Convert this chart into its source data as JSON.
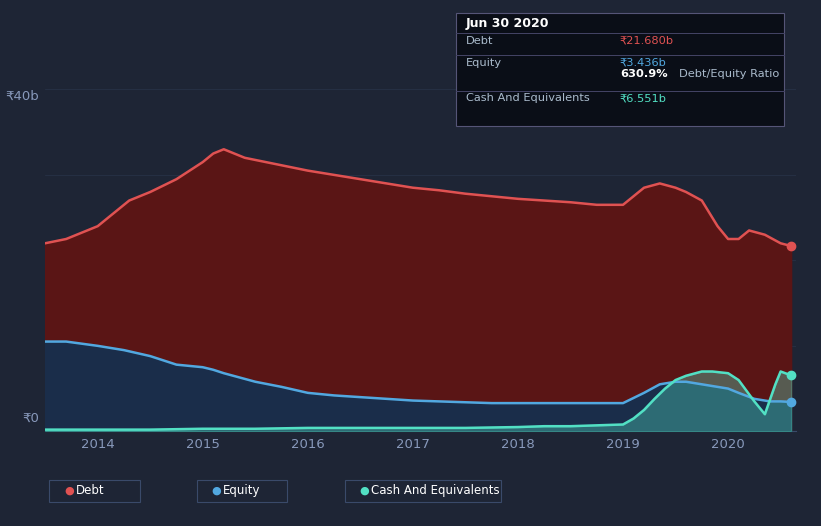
{
  "background_color": "#1e2535",
  "plot_bg_color": "#1e2535",
  "title_box": {
    "date": "Jun 30 2020",
    "debt_label": "Debt",
    "debt_value": "₹21.680b",
    "equity_label": "Equity",
    "equity_value": "₹3.436b",
    "ratio_text": "630.9% Debt/Equity Ratio",
    "cash_label": "Cash And Equivalents",
    "cash_value": "₹6.551b"
  },
  "ylabel_text": "₹40b",
  "ylabel0_text": "₹0",
  "x_tick_labels": [
    "2014",
    "2015",
    "2016",
    "2017",
    "2018",
    "2019",
    "2020"
  ],
  "legend_items": [
    {
      "label": "Debt",
      "color": "#e05252"
    },
    {
      "label": "Equity",
      "color": "#52a8e0"
    },
    {
      "label": "Cash And Equivalents",
      "color": "#52e0c4"
    }
  ],
  "debt_color": "#e05252",
  "equity_color": "#52a8e0",
  "cash_color": "#52e0c4",
  "debt_fill_color": "#5a1515",
  "equity_fill_color": "#1a2d4a",
  "ylim": [
    0,
    40
  ],
  "debt_data": {
    "x": [
      2013.5,
      2013.7,
      2014.0,
      2014.15,
      2014.3,
      2014.5,
      2014.75,
      2015.0,
      2015.1,
      2015.2,
      2015.4,
      2015.6,
      2015.8,
      2016.0,
      2016.25,
      2016.5,
      2016.75,
      2017.0,
      2017.25,
      2017.5,
      2017.75,
      2018.0,
      2018.25,
      2018.5,
      2018.75,
      2019.0,
      2019.1,
      2019.2,
      2019.35,
      2019.5,
      2019.6,
      2019.75,
      2019.9,
      2020.0,
      2020.1,
      2020.2,
      2020.35,
      2020.5,
      2020.6
    ],
    "y": [
      22.0,
      22.5,
      24.0,
      25.5,
      27.0,
      28.0,
      29.5,
      31.5,
      32.5,
      33.0,
      32.0,
      31.5,
      31.0,
      30.5,
      30.0,
      29.5,
      29.0,
      28.5,
      28.2,
      27.8,
      27.5,
      27.2,
      27.0,
      26.8,
      26.5,
      26.5,
      27.5,
      28.5,
      29.0,
      28.5,
      28.0,
      27.0,
      24.0,
      22.5,
      22.5,
      23.5,
      23.0,
      22.0,
      21.68
    ]
  },
  "equity_data": {
    "x": [
      2013.5,
      2013.7,
      2014.0,
      2014.25,
      2014.5,
      2014.75,
      2015.0,
      2015.1,
      2015.2,
      2015.5,
      2015.75,
      2016.0,
      2016.25,
      2016.5,
      2016.75,
      2017.0,
      2017.25,
      2017.5,
      2017.75,
      2018.0,
      2018.25,
      2018.5,
      2018.75,
      2019.0,
      2019.2,
      2019.35,
      2019.5,
      2019.6,
      2019.75,
      2019.85,
      2020.0,
      2020.1,
      2020.25,
      2020.4,
      2020.5,
      2020.6
    ],
    "y": [
      10.5,
      10.5,
      10.0,
      9.5,
      8.8,
      7.8,
      7.5,
      7.2,
      6.8,
      5.8,
      5.2,
      4.5,
      4.2,
      4.0,
      3.8,
      3.6,
      3.5,
      3.4,
      3.3,
      3.3,
      3.3,
      3.3,
      3.3,
      3.3,
      4.5,
      5.5,
      5.8,
      5.8,
      5.5,
      5.3,
      5.0,
      4.5,
      3.8,
      3.5,
      3.5,
      3.436
    ]
  },
  "cash_data": {
    "x": [
      2013.5,
      2014.0,
      2014.5,
      2015.0,
      2015.5,
      2016.0,
      2016.5,
      2017.0,
      2017.5,
      2018.0,
      2018.25,
      2018.5,
      2018.75,
      2019.0,
      2019.1,
      2019.2,
      2019.3,
      2019.4,
      2019.5,
      2019.6,
      2019.75,
      2019.85,
      2020.0,
      2020.1,
      2020.25,
      2020.35,
      2020.45,
      2020.5,
      2020.6
    ],
    "y": [
      0.2,
      0.2,
      0.2,
      0.3,
      0.3,
      0.4,
      0.4,
      0.4,
      0.4,
      0.5,
      0.6,
      0.6,
      0.7,
      0.8,
      1.5,
      2.5,
      3.8,
      5.0,
      6.0,
      6.5,
      7.0,
      7.0,
      6.8,
      6.0,
      3.5,
      2.0,
      5.5,
      7.0,
      6.551
    ]
  }
}
